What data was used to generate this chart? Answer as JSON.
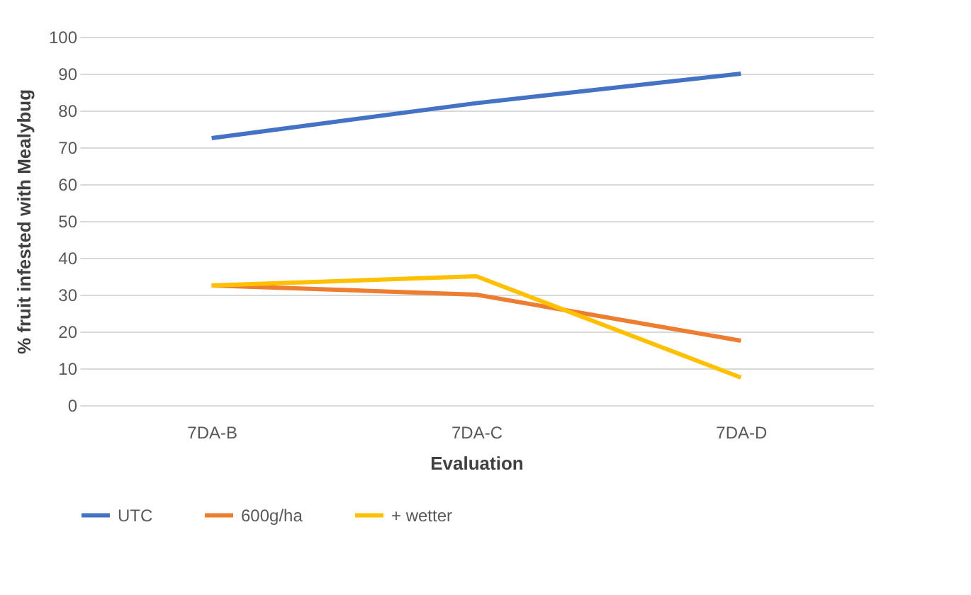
{
  "chart_data": {
    "type": "line",
    "xlabel": "Evaluation",
    "ylabel": "% fruit infested with Mealybug",
    "categories": [
      "7DA-B",
      "7DA-C",
      "7DA-D"
    ],
    "series": [
      {
        "name": "UTC",
        "color": "#4472c4",
        "values": [
          72.5,
          82,
          90
        ]
      },
      {
        "name": "600g/ha",
        "color": "#ed7d31",
        "values": [
          32.5,
          30,
          17.5
        ]
      },
      {
        "name": "+ wetter",
        "color": "#ffc000",
        "values": [
          32.5,
          35,
          7.5
        ]
      }
    ],
    "ylim": [
      0,
      100
    ],
    "yticks": [
      0,
      10,
      20,
      30,
      40,
      50,
      60,
      70,
      80,
      90,
      100
    ],
    "grid": "y",
    "legend": "bottom",
    "marker": "none",
    "line_style": "solid"
  }
}
